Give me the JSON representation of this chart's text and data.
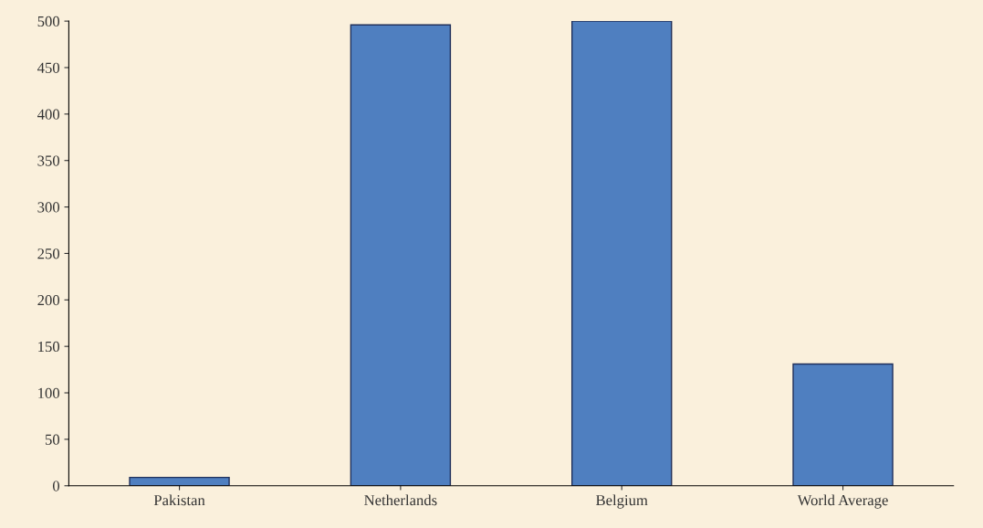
{
  "chart_data": {
    "type": "bar",
    "categories": [
      "Pakistan",
      "Netherlands",
      "Belgium",
      "World Average"
    ],
    "values": [
      9,
      496,
      500,
      131
    ],
    "color": "#4f7fc0",
    "ylim": [
      0,
      500
    ],
    "yticks": [
      0,
      50,
      100,
      150,
      200,
      250,
      300,
      350,
      400,
      450,
      500
    ],
    "grid": false
  }
}
